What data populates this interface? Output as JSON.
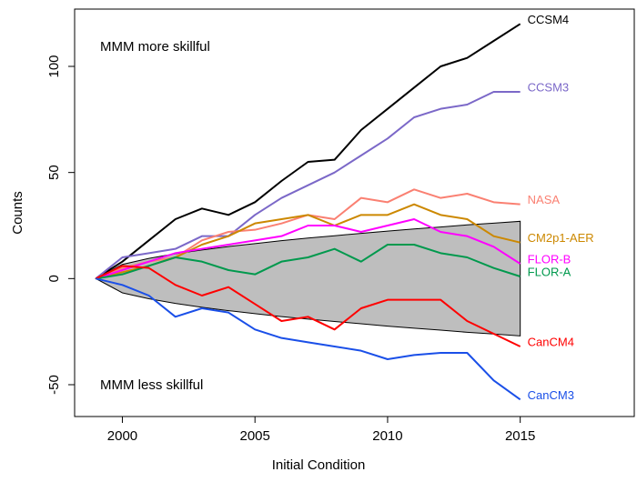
{
  "chart_data": {
    "type": "line",
    "x_label": "Initial Condition",
    "y_label": "Counts",
    "annotations": [
      "MMM more skillful",
      "MMM less skillful"
    ],
    "xlim": [
      1998.2,
      2019.3
    ],
    "ylim": [
      -65,
      127
    ],
    "xticks": [
      2000,
      2005,
      2010,
      2015
    ],
    "yticks": [
      -50,
      0,
      50,
      100
    ],
    "x": [
      1999,
      2000,
      2001,
      2002,
      2003,
      2004,
      2005,
      2006,
      2007,
      2008,
      2009,
      2010,
      2011,
      2012,
      2013,
      2014,
      2015
    ],
    "envelope": {
      "color": "#bebebe",
      "upper": [
        0,
        6.7,
        9.5,
        11.7,
        13.5,
        15.1,
        16.5,
        17.9,
        19.1,
        20.2,
        21.3,
        22.4,
        23.4,
        24.3,
        25.3,
        26.1,
        27
      ],
      "lower": [
        0,
        -6.7,
        -9.5,
        -11.7,
        -13.5,
        -15.1,
        -16.5,
        -17.9,
        -19.1,
        -20.2,
        -21.3,
        -22.4,
        -23.4,
        -24.3,
        -25.3,
        -26.1,
        -27
      ]
    },
    "series": [
      {
        "name": "CCSM4",
        "color": "#000000",
        "values": [
          0,
          8,
          18,
          28,
          33,
          30,
          36,
          46,
          55,
          56,
          70,
          80,
          90,
          100,
          104,
          112,
          120
        ]
      },
      {
        "name": "CCSM3",
        "color": "#7b68c8",
        "values": [
          0,
          10,
          12,
          14,
          20,
          20,
          30,
          38,
          44,
          50,
          58,
          66,
          76,
          80,
          82,
          88,
          88
        ]
      },
      {
        "name": "NASA",
        "color": "#fa8072",
        "values": [
          0,
          5,
          8,
          10,
          18,
          22,
          23,
          26,
          30,
          28,
          38,
          36,
          42,
          38,
          40,
          36,
          35
        ]
      },
      {
        "name": "CM2p1-AER",
        "color": "#cc8800",
        "values": [
          0,
          3,
          6,
          10,
          16,
          20,
          26,
          28,
          30,
          25,
          30,
          30,
          35,
          30,
          28,
          20,
          17
        ]
      },
      {
        "name": "FLOR-B",
        "color": "#ff00ff",
        "values": [
          0,
          4,
          8,
          12,
          14,
          16,
          18,
          20,
          25,
          25,
          22,
          25,
          28,
          22,
          20,
          15,
          7
        ]
      },
      {
        "name": "FLOR-A",
        "color": "#00994d",
        "values": [
          0,
          2,
          6,
          10,
          8,
          4,
          2,
          8,
          10,
          14,
          8,
          16,
          16,
          12,
          10,
          5,
          1
        ]
      },
      {
        "name": "CanCM4",
        "color": "#ff0000",
        "values": [
          0,
          6,
          5,
          -3,
          -8,
          -4,
          -12,
          -20,
          -18,
          -24,
          -14,
          -10,
          -10,
          -10,
          -20,
          -26,
          -32
        ]
      },
      {
        "name": "CanCM3",
        "color": "#1a4fe8",
        "values": [
          0,
          -3,
          -8,
          -18,
          -14,
          -16,
          -24,
          -28,
          -30,
          -32,
          -34,
          -38,
          -36,
          -35,
          -35,
          -48,
          -57
        ]
      }
    ]
  }
}
